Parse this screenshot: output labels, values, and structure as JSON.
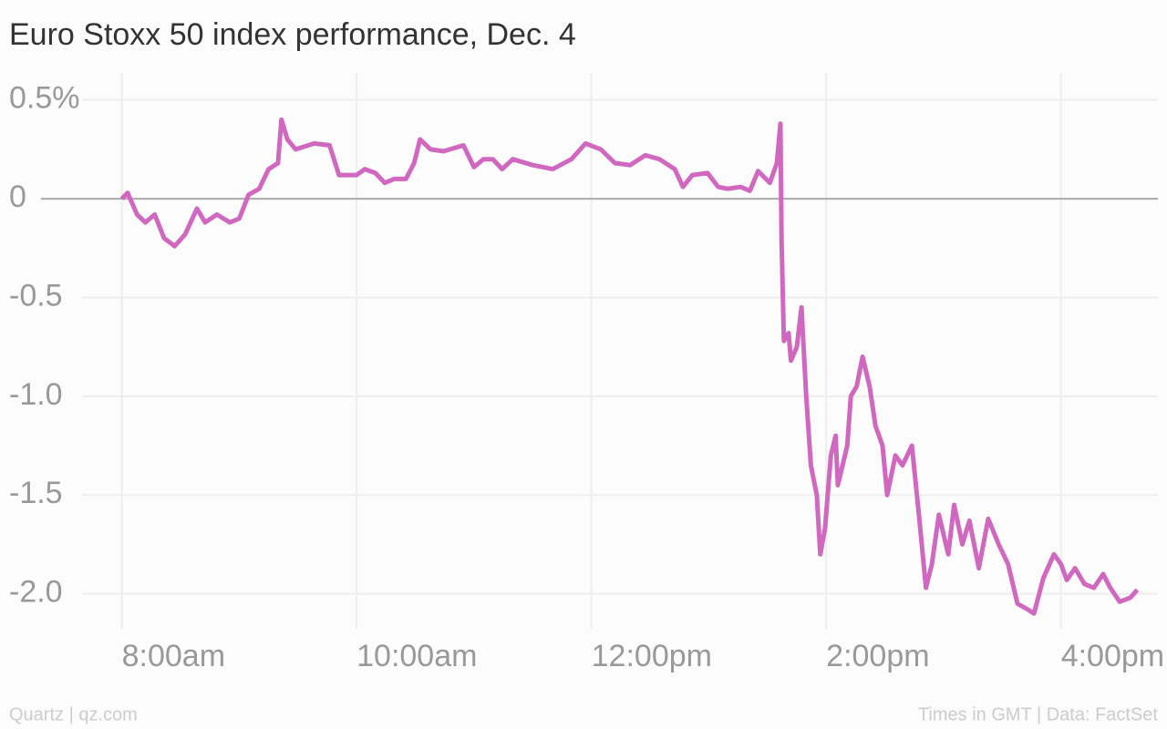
{
  "chart_data": {
    "type": "line",
    "title": "Euro Stoxx 50 index performance, Dec. 4",
    "source": "Quartz | qz.com",
    "note": "Times in GMT | Data: FactSet",
    "x": [
      8.0,
      8.05,
      8.13,
      8.2,
      8.28,
      8.36,
      8.45,
      8.54,
      8.64,
      8.71,
      8.81,
      8.92,
      9.0,
      9.08,
      9.17,
      9.25,
      9.33,
      9.36,
      9.41,
      9.48,
      9.64,
      9.77,
      9.85,
      10.0,
      10.07,
      10.16,
      10.24,
      10.32,
      10.42,
      10.49,
      10.54,
      10.63,
      10.74,
      10.91,
      11.0,
      11.08,
      11.16,
      11.24,
      11.33,
      11.5,
      11.67,
      11.83,
      11.95,
      12.08,
      12.2,
      12.33,
      12.46,
      12.58,
      12.71,
      12.78,
      12.86,
      12.99,
      13.08,
      13.16,
      13.27,
      13.35,
      13.42,
      13.52,
      13.58,
      13.61,
      13.62,
      13.64,
      13.68,
      13.7,
      13.75,
      13.79,
      13.83,
      13.87,
      13.92,
      13.95,
      13.99,
      14.04,
      14.08,
      14.1,
      14.18,
      14.21,
      14.26,
      14.31,
      14.37,
      14.42,
      14.48,
      14.52,
      14.59,
      14.65,
      14.73,
      14.79,
      14.85,
      14.9,
      14.96,
      15.04,
      15.09,
      15.16,
      15.22,
      15.3,
      15.38,
      15.47,
      15.55,
      15.63,
      15.72,
      15.77,
      15.85,
      15.94,
      16.0,
      16.05,
      16.12,
      16.2,
      16.28,
      16.36,
      16.42,
      16.5,
      16.59,
      16.65
    ],
    "series": [
      {
        "name": "Euro Stoxx 50",
        "color": "#d068c0",
        "values": [
          0,
          0.03,
          -0.08,
          -0.12,
          -0.08,
          -0.2,
          -0.24,
          -0.18,
          -0.05,
          -0.12,
          -0.08,
          -0.12,
          -0.1,
          0.02,
          0.05,
          0.15,
          0.18,
          0.4,
          0.3,
          0.25,
          0.28,
          0.27,
          0.12,
          0.12,
          0.15,
          0.13,
          0.08,
          0.1,
          0.1,
          0.18,
          0.3,
          0.25,
          0.24,
          0.27,
          0.16,
          0.2,
          0.2,
          0.15,
          0.2,
          0.17,
          0.15,
          0.2,
          0.28,
          0.25,
          0.18,
          0.17,
          0.22,
          0.2,
          0.15,
          0.06,
          0.12,
          0.13,
          0.06,
          0.05,
          0.06,
          0.04,
          0.14,
          0.08,
          0.18,
          0.38,
          -0.2,
          -0.72,
          -0.68,
          -0.82,
          -0.75,
          -0.55,
          -1.0,
          -1.35,
          -1.5,
          -1.8,
          -1.67,
          -1.3,
          -1.2,
          -1.45,
          -1.25,
          -1.0,
          -0.95,
          -0.8,
          -0.95,
          -1.15,
          -1.25,
          -1.5,
          -1.3,
          -1.35,
          -1.25,
          -1.6,
          -1.97,
          -1.85,
          -1.6,
          -1.8,
          -1.55,
          -1.75,
          -1.63,
          -1.87,
          -1.62,
          -1.75,
          -1.85,
          -2.05,
          -2.08,
          -2.1,
          -1.92,
          -1.8,
          -1.85,
          -1.93,
          -1.87,
          -1.95,
          -1.97,
          -1.9,
          -1.97,
          -2.04,
          -2.02,
          -1.98
        ]
      }
    ],
    "xlim": [
      7.04,
      16.88
    ],
    "xticks": [
      {
        "value": 8,
        "label": "8:00am"
      },
      {
        "value": 10,
        "label": "10:00am"
      },
      {
        "value": 12,
        "label": "12:00pm"
      },
      {
        "value": 14,
        "label": "2:00pm"
      },
      {
        "value": 16,
        "label": "4:00pm"
      }
    ],
    "ylim": [
      -2.2,
      0.6
    ],
    "yticks": [
      {
        "value": 0.5,
        "label": "0.5%"
      },
      0,
      -0.5,
      {
        "value": -1,
        "label": "-1.0"
      },
      -1.5,
      {
        "value": -2,
        "label": "-2.0"
      }
    ],
    "grid": true
  }
}
